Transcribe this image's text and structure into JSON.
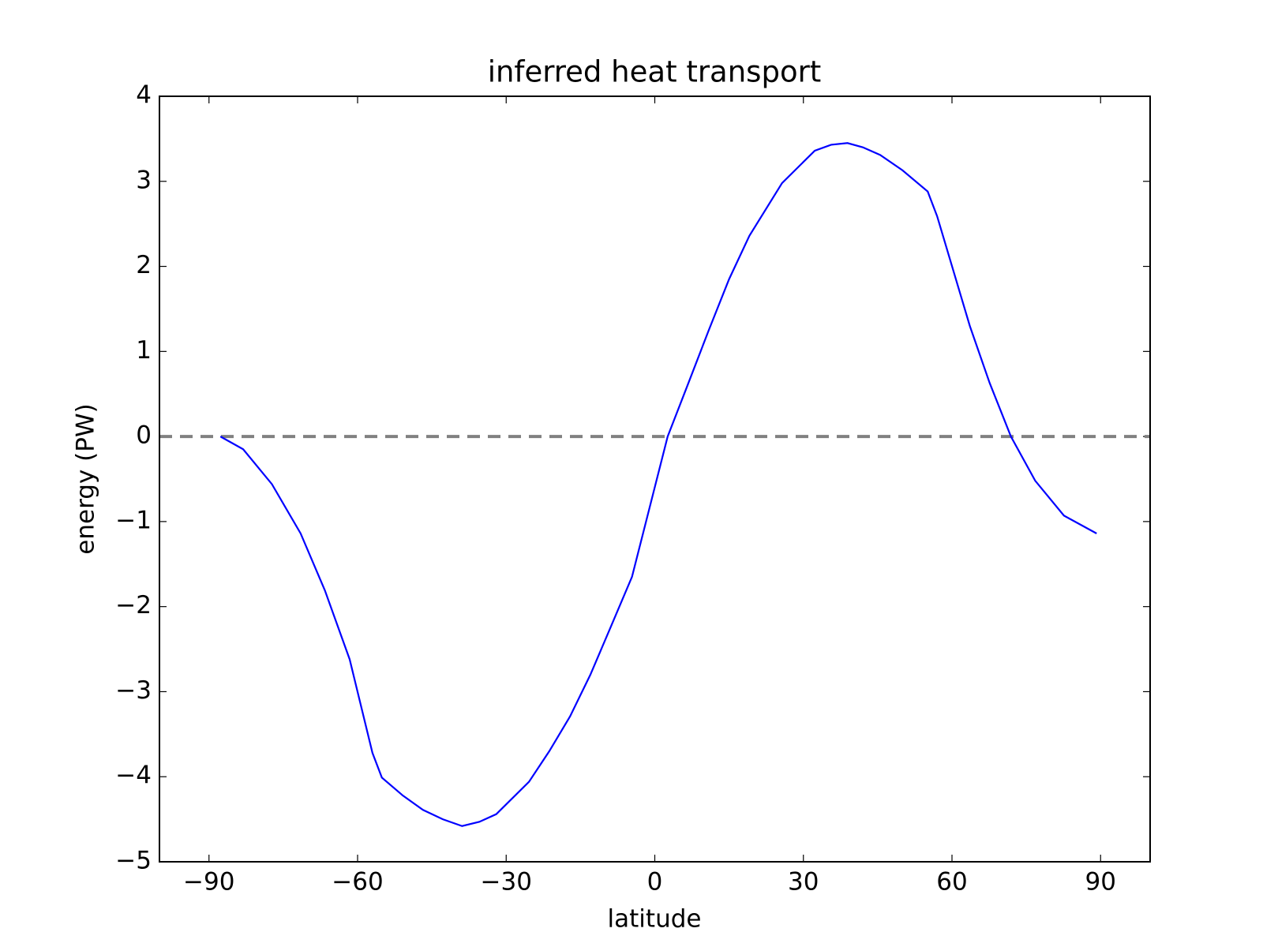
{
  "chart_data": {
    "type": "line",
    "title": "inferred heat transport",
    "xlabel": "latitude",
    "ylabel": "energy (PW)",
    "x": [
      -87.7,
      -83.1,
      -77.3,
      -71.5,
      -66.6,
      -61.6,
      -57.0,
      -55.1,
      -50.9,
      -46.8,
      -42.8,
      -38.9,
      -35.4,
      -32.0,
      -25.4,
      -21.3,
      -17.1,
      -13.0,
      -8.9,
      -4.6,
      2.6,
      6.6,
      10.9,
      15.0,
      19.1,
      25.7,
      32.3,
      35.6,
      38.9,
      42.0,
      45.5,
      50.0,
      55.1,
      57.0,
      63.6,
      67.6,
      71.9,
      76.8,
      82.6,
      89.2
    ],
    "series": [
      {
        "color": "#0000ff",
        "values": [
          0,
          -0.15,
          -0.56,
          -1.14,
          -1.81,
          -2.62,
          -3.72,
          -4.01,
          -4.22,
          -4.39,
          -4.5,
          -4.58,
          -4.53,
          -4.44,
          -4.06,
          -3.7,
          -3.29,
          -2.8,
          -2.24,
          -1.65,
          0,
          0.6,
          1.25,
          1.85,
          2.36,
          2.98,
          3.36,
          3.43,
          3.45,
          3.4,
          3.31,
          3.13,
          2.88,
          2.59,
          1.3,
          0.63,
          0,
          -0.52,
          -0.93,
          -1.14
        ]
      }
    ],
    "reference_line": {
      "y": 0,
      "color": "#808080",
      "style": "dashed"
    },
    "xlim": [
      -100,
      100
    ],
    "xticks": [
      {
        "value": -90,
        "label": "−90"
      },
      {
        "value": -60,
        "label": "−60"
      },
      {
        "value": -30,
        "label": "−30"
      },
      0,
      30,
      60,
      90
    ],
    "ylim": [
      -5,
      4
    ],
    "yticks": [
      {
        "value": -5,
        "label": "−5"
      },
      {
        "value": -4,
        "label": "−4"
      },
      {
        "value": -3,
        "label": "−3"
      },
      {
        "value": -2,
        "label": "−2"
      },
      {
        "value": -1,
        "label": "−1"
      },
      0,
      1,
      2,
      3,
      4
    ],
    "grid": false
  }
}
